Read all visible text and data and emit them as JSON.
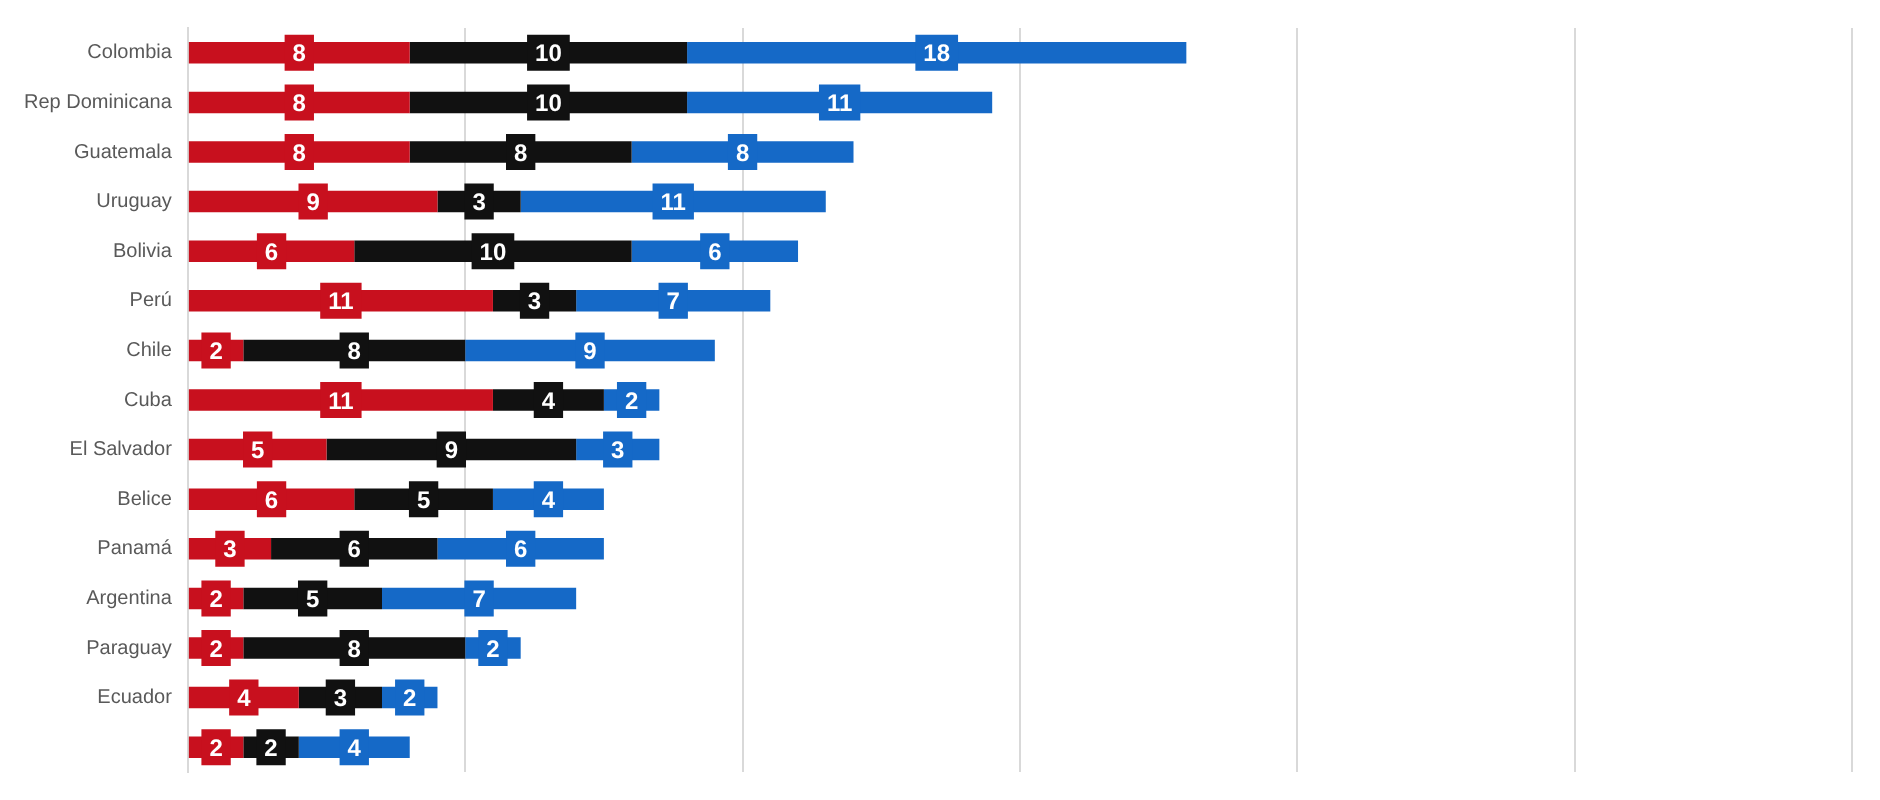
{
  "chart_data": {
    "type": "bar",
    "orientation": "horizontal",
    "stacked": true,
    "data_labels": true,
    "grid": "x",
    "legend": false,
    "tick_labels": "y",
    "categories": [
      "Colombia",
      "Rep Dominicana",
      "Guatemala",
      "Uruguay",
      "Bolivia",
      "Perú",
      "Chile",
      "Cuba",
      "El Salvador",
      "Belice",
      "Panamá",
      "Argentina",
      "Paraguay",
      "Ecuador",
      null
    ],
    "xlim": [
      0,
      60
    ],
    "xticks": [
      {
        "value": 0,
        "label": null
      },
      {
        "value": 10,
        "label": null
      },
      {
        "value": 20,
        "label": null
      },
      {
        "value": 30,
        "label": null
      },
      {
        "value": 40,
        "label": null
      },
      {
        "value": 50,
        "label": null
      },
      {
        "value": 60,
        "label": null
      }
    ],
    "series": [
      {
        "color": "#c8101e",
        "values": [
          8,
          8,
          8,
          9,
          6,
          11,
          2,
          11,
          5,
          6,
          3,
          2,
          2,
          4,
          2
        ]
      },
      {
        "color": "#111111",
        "values": [
          10,
          10,
          8,
          3,
          10,
          3,
          8,
          4,
          9,
          5,
          6,
          5,
          8,
          3,
          2
        ]
      },
      {
        "color": "#1569c7",
        "values": [
          18,
          11,
          8,
          11,
          6,
          7,
          9,
          2,
          3,
          4,
          6,
          7,
          2,
          2,
          4
        ]
      }
    ]
  }
}
